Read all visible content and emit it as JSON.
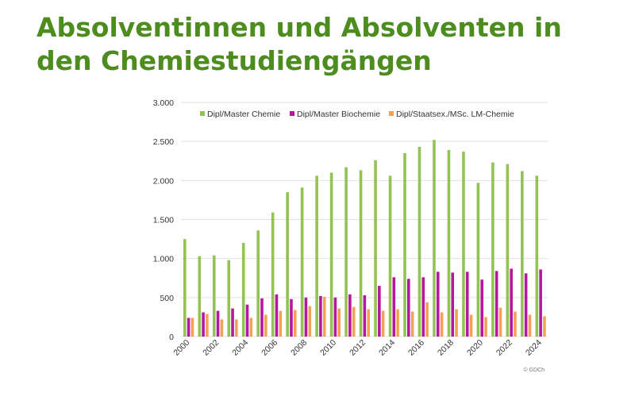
{
  "title": "Absolventinnen und Absolventen in den Chemiestudiengängen",
  "credit": "© GDCh",
  "colors": {
    "title": "#4d8c1e",
    "series": [
      "#92c353",
      "#b5179e",
      "#f4a055"
    ],
    "grid": "#e2e2e2"
  },
  "chart_data": {
    "type": "bar",
    "title": "",
    "xlabel": "",
    "ylabel": "",
    "ylim": [
      0,
      3000
    ],
    "yticks": [
      0,
      500,
      1000,
      1500,
      2000,
      2500,
      3000
    ],
    "ytick_labels": [
      "0",
      "500",
      "1.000",
      "1.500",
      "2.000",
      "2.500",
      "3.000"
    ],
    "grid": true,
    "legend_position": "top",
    "categories": [
      "2000",
      "2001",
      "2002",
      "2003",
      "2004",
      "2005",
      "2006",
      "2007",
      "2008",
      "2009",
      "2010",
      "2011",
      "2012",
      "2013",
      "2014",
      "2015",
      "2016",
      "2017",
      "2018",
      "2019",
      "2020",
      "2021",
      "2022",
      "2023",
      "2024"
    ],
    "xtick_labels": [
      "2000",
      "",
      "2002",
      "",
      "2004",
      "",
      "2006",
      "",
      "2008",
      "",
      "2010",
      "",
      "2012",
      "",
      "2014",
      "",
      "2016",
      "",
      "2018",
      "",
      "2020",
      "",
      "2022",
      "",
      "2024"
    ],
    "series": [
      {
        "name": "Dipl/Master Chemie",
        "values": [
          1250,
          1030,
          1040,
          980,
          1200,
          1360,
          1590,
          1850,
          1910,
          2060,
          2100,
          2170,
          2130,
          2260,
          2060,
          2350,
          2430,
          2520,
          2390,
          2370,
          1970,
          2230,
          2210,
          2120,
          2060
        ]
      },
      {
        "name": "Dipl/Master Biochemie",
        "values": [
          240,
          310,
          330,
          360,
          410,
          490,
          540,
          480,
          500,
          520,
          500,
          540,
          530,
          650,
          760,
          740,
          760,
          830,
          820,
          830,
          730,
          840,
          870,
          810,
          860
        ]
      },
      {
        "name": "Dipl/Staatsex./MSc. LM-Chemie",
        "values": [
          240,
          290,
          220,
          220,
          240,
          280,
          330,
          340,
          390,
          510,
          360,
          380,
          350,
          330,
          350,
          320,
          440,
          310,
          350,
          280,
          250,
          370,
          320,
          280,
          260
        ]
      }
    ]
  }
}
